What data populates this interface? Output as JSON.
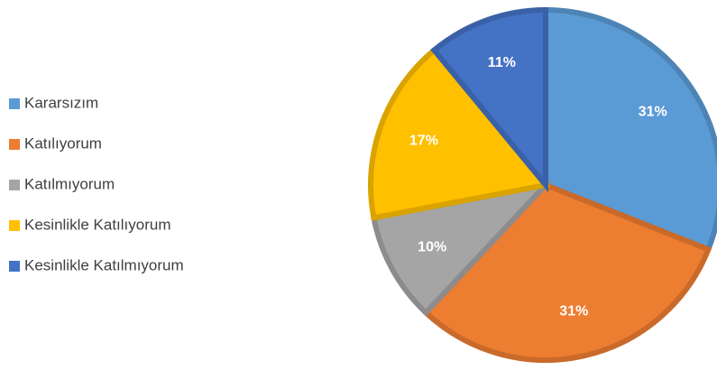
{
  "chart_data": {
    "type": "pie",
    "categories": [
      "Kararsızım",
      "Katılıyorum",
      "Katılmıyorum",
      "Kesinlikle Katılıyorum",
      "Kesinlikle Katılmıyorum"
    ],
    "values": [
      31,
      31,
      10,
      17,
      11
    ],
    "value_labels": [
      "31%",
      "31%",
      "10%",
      "17%",
      "11%"
    ],
    "colors": [
      "#5b9bd5",
      "#ed7d31",
      "#a5a5a5",
      "#ffc000",
      "#4472c4"
    ],
    "legend": "left"
  }
}
